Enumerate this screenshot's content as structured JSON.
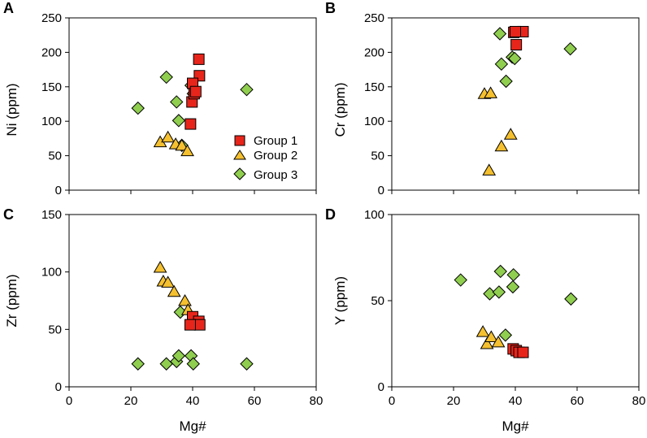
{
  "colors": {
    "group1": "#e8251b",
    "group2": "#f5c02f",
    "group3": "#8fce4f",
    "outline": "#000000"
  },
  "legend": [
    "Group 1",
    "Group 2",
    "Group 3"
  ],
  "chart_data": [
    {
      "type": "scatter",
      "panel": "A",
      "xlabel": "Mg#",
      "ylabel": "Ni (ppm)",
      "xlim": [
        0,
        80
      ],
      "ylim": [
        0,
        250
      ],
      "xticks": [],
      "yticks": [
        "0",
        "50",
        "100",
        "150",
        "200",
        "250"
      ],
      "legend_position": "bottom-right",
      "series": [
        {
          "name": "Group 1",
          "marker": "square",
          "x": [
            42,
            42.2,
            40,
            39.8,
            40.5,
            41,
            39.3
          ],
          "y": [
            190,
            166,
            155,
            128,
            140,
            143,
            96
          ]
        },
        {
          "name": "Group 2",
          "marker": "triangle",
          "x": [
            29.5,
            32,
            34.5,
            36.5,
            38.3
          ],
          "y": [
            70,
            77,
            67,
            65,
            57
          ]
        },
        {
          "name": "Group 3",
          "marker": "diamond",
          "x": [
            22.3,
            31.5,
            34.8,
            35.5,
            39.5,
            40.2,
            36.5,
            57.5
          ],
          "y": [
            119,
            164,
            128,
            101,
            152,
            140,
            65,
            146
          ]
        }
      ]
    },
    {
      "type": "scatter",
      "panel": "B",
      "xlabel": "Mg#",
      "ylabel": "Cr (ppm)",
      "xlim": [
        0,
        80
      ],
      "ylim": [
        0,
        250
      ],
      "xticks": [],
      "yticks": [
        "0",
        "50",
        "100",
        "150",
        "200",
        "250"
      ],
      "series": [
        {
          "name": "Group 1",
          "marker": "square",
          "x": [
            39.5,
            42.5,
            40,
            40.3
          ],
          "y": [
            229,
            230,
            230,
            211
          ]
        },
        {
          "name": "Group 2",
          "marker": "triangle",
          "x": [
            30,
            32,
            35.5,
            38.5,
            31.5
          ],
          "y": [
            140,
            141,
            64,
            81,
            29
          ]
        },
        {
          "name": "Group 3",
          "marker": "diamond",
          "x": [
            35,
            35.5,
            37,
            39,
            39.8,
            57.8
          ],
          "y": [
            227,
            183,
            158,
            193,
            191,
            205
          ]
        }
      ]
    },
    {
      "type": "scatter",
      "panel": "C",
      "xlabel": "Mg#",
      "ylabel": "Zr (ppm)",
      "xlim": [
        0,
        80
      ],
      "ylim": [
        0,
        150
      ],
      "xticks": [
        "0",
        "20",
        "40",
        "60",
        "80"
      ],
      "yticks": [
        "0",
        "50",
        "100",
        "150"
      ],
      "series": [
        {
          "name": "Group 1",
          "marker": "square",
          "x": [
            40,
            42,
            42.3,
            39.2
          ],
          "y": [
            61,
            57,
            54,
            54
          ]
        },
        {
          "name": "Group 2",
          "marker": "triangle",
          "x": [
            29.5,
            30.5,
            32,
            34,
            37.5,
            38.5
          ],
          "y": [
            104,
            92,
            91,
            83,
            75,
            67
          ]
        },
        {
          "name": "Group 3",
          "marker": "diamond",
          "x": [
            22.3,
            31.5,
            34.8,
            35.5,
            39.5,
            40.2,
            36,
            57.5
          ],
          "y": [
            20,
            20,
            22,
            27,
            27,
            20,
            65,
            20
          ]
        }
      ]
    },
    {
      "type": "scatter",
      "panel": "D",
      "xlabel": "Mg#",
      "ylabel": "Y (ppm)",
      "xlim": [
        0,
        80
      ],
      "ylim": [
        0,
        100
      ],
      "xticks": [
        "0",
        "20",
        "40",
        "60",
        "80"
      ],
      "yticks": [
        "0",
        "50",
        "100"
      ],
      "series": [
        {
          "name": "Group 1",
          "marker": "square",
          "x": [
            39.3,
            40.3,
            41.2,
            42.5
          ],
          "y": [
            22,
            21,
            20,
            20
          ]
        },
        {
          "name": "Group 2",
          "marker": "triangle",
          "x": [
            29.5,
            30.8,
            32.2,
            34.5
          ],
          "y": [
            32,
            25,
            29,
            26
          ]
        },
        {
          "name": "Group 3",
          "marker": "diamond",
          "x": [
            22.3,
            31.7,
            34.7,
            35.2,
            39.4,
            39.2,
            36.8,
            58
          ],
          "y": [
            62,
            54,
            55,
            67,
            65,
            58,
            30,
            51
          ]
        }
      ]
    }
  ]
}
